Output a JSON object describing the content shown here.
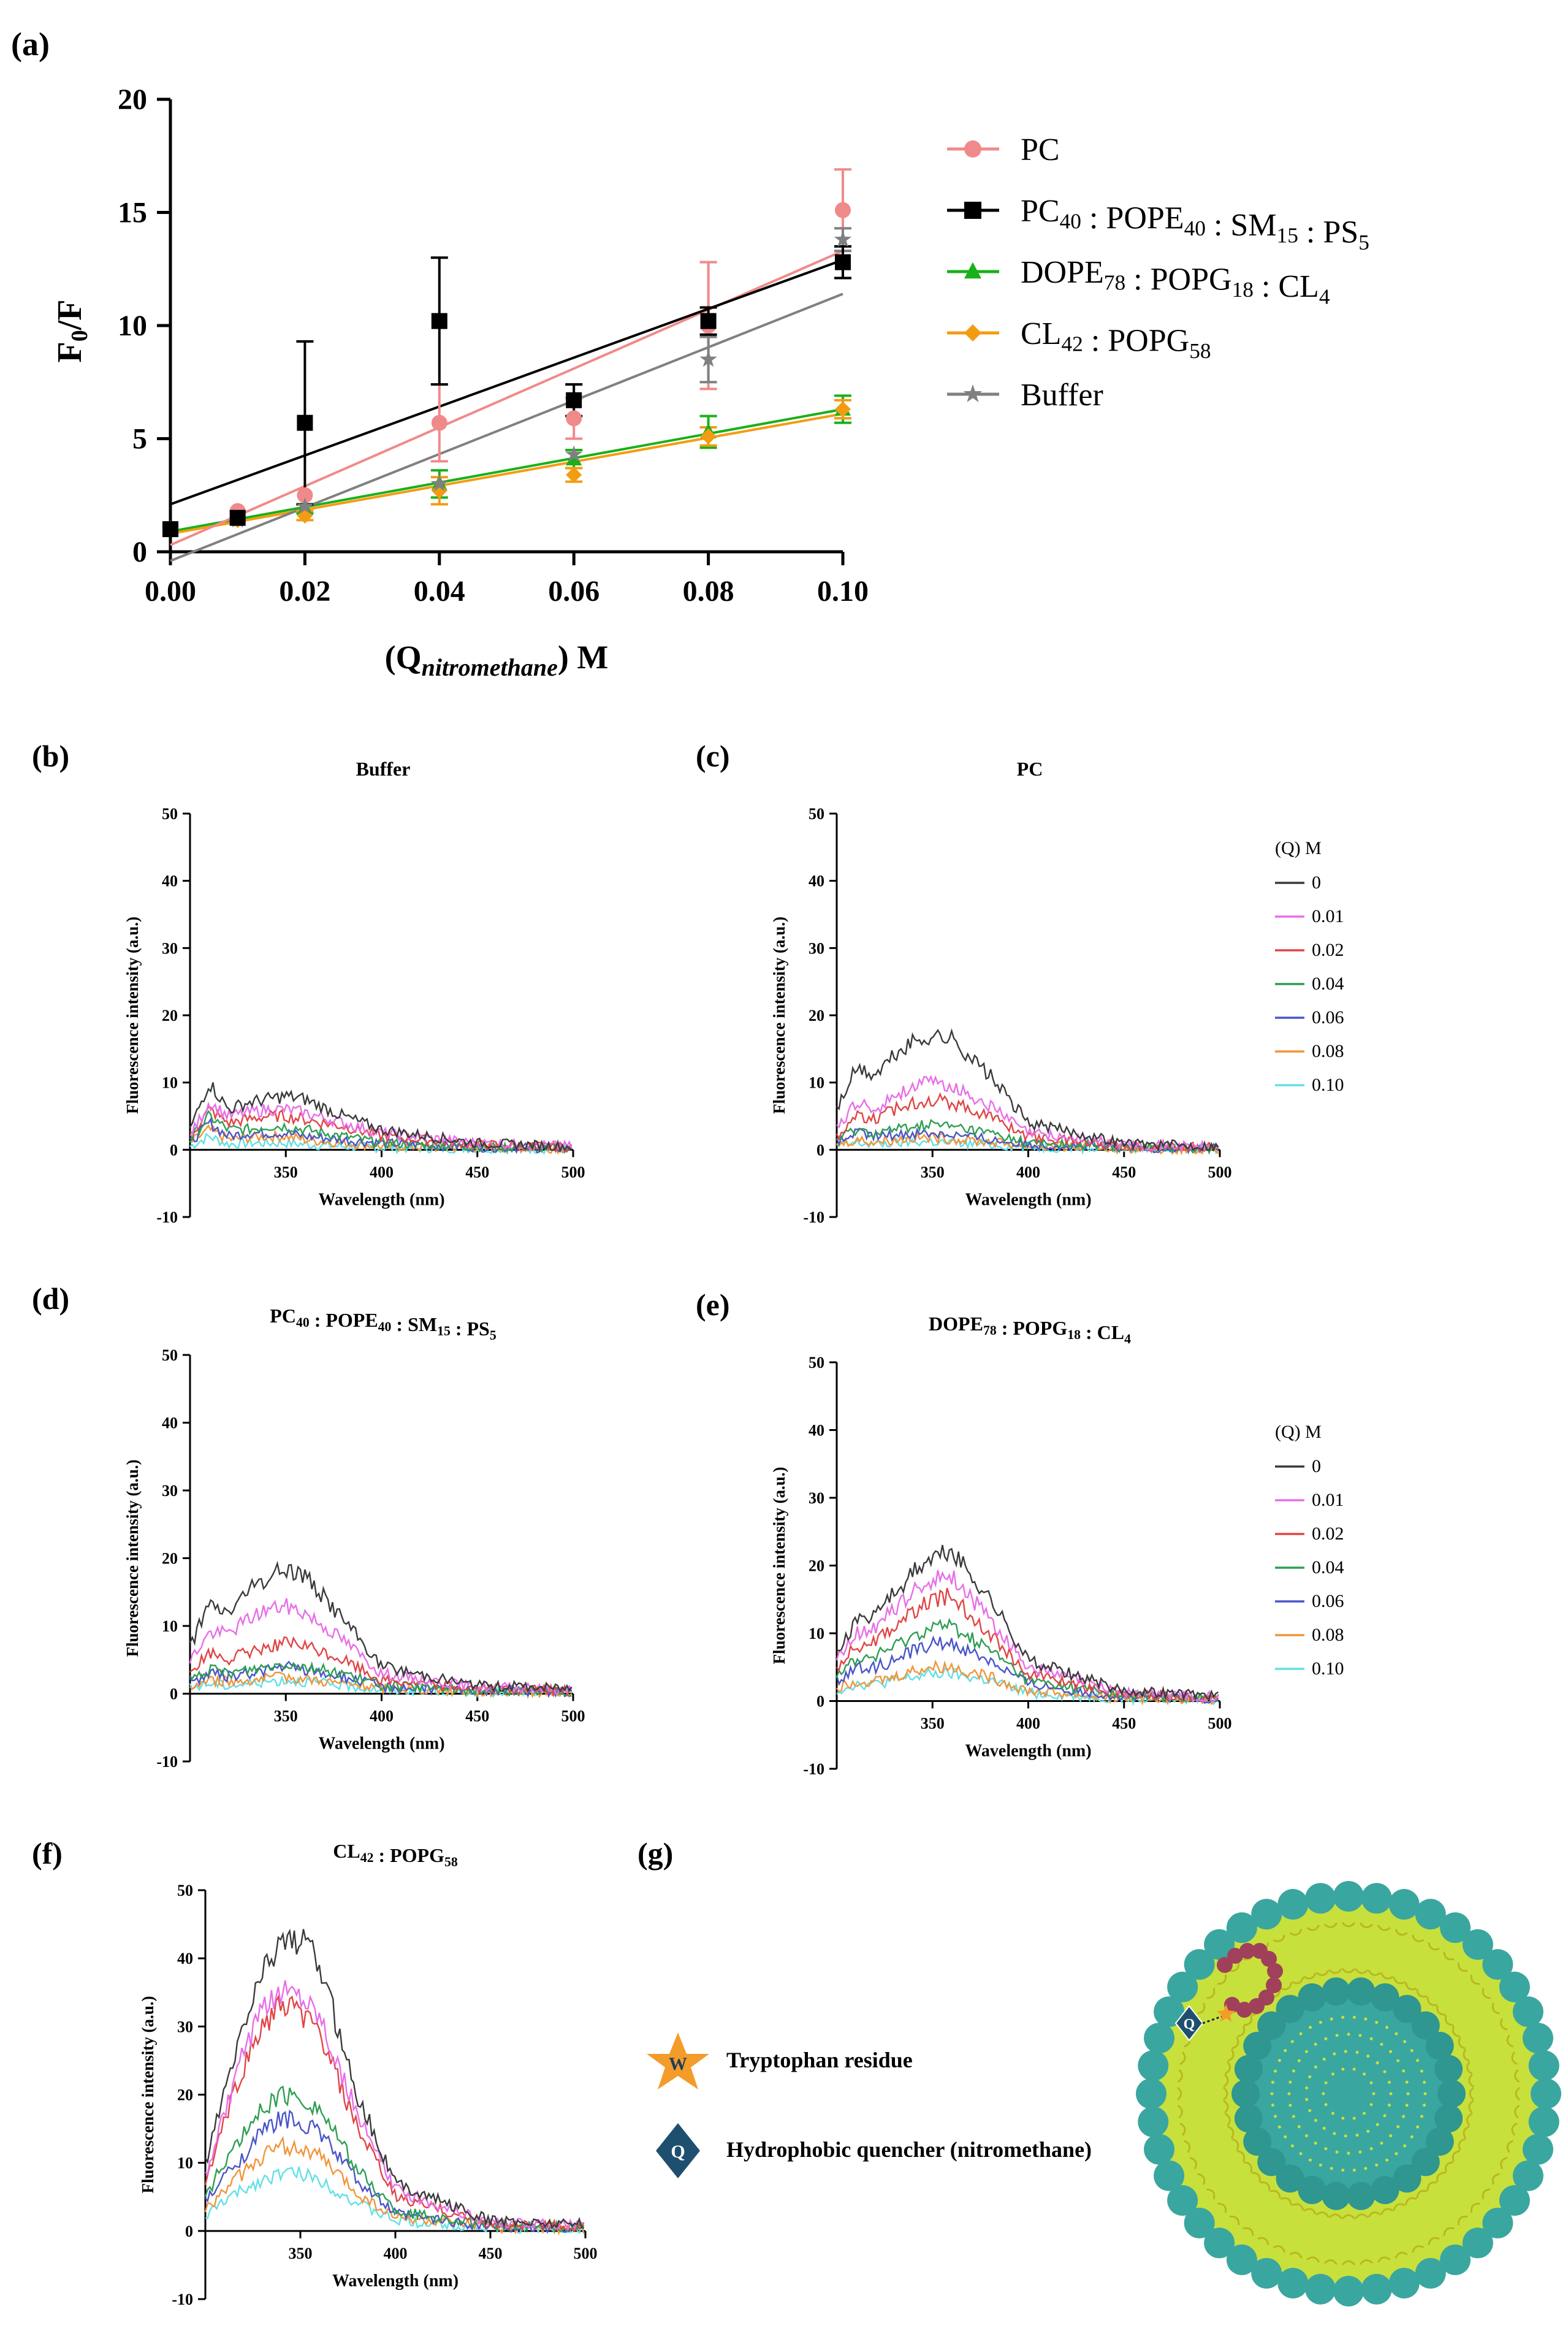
{
  "chart_data": [
    {
      "panel": "(a)",
      "type": "scatter",
      "title": "",
      "ylabel": "F0/F",
      "xlabel": "(Qnitromethane) M",
      "xlim": [
        0,
        0.1
      ],
      "ylim": [
        0,
        20
      ],
      "xticks": [
        "0.00",
        "0.02",
        "0.04",
        "0.06",
        "0.08",
        "0.10"
      ],
      "yticks": [
        "0",
        "5",
        "10",
        "15",
        "20"
      ],
      "legend_position": "right",
      "series": [
        {
          "name": "PC",
          "name_main": "PC",
          "name_parts": [],
          "color": "#f08a8a",
          "marker": "circle",
          "x": [
            0,
            0.01,
            0.02,
            0.04,
            0.06,
            0.08,
            0.1
          ],
          "y": [
            1.0,
            1.8,
            2.5,
            5.7,
            5.9,
            10.0,
            15.1
          ],
          "err": [
            0,
            0,
            0,
            1.7,
            0.9,
            2.8,
            1.8
          ],
          "fit": [
            0.3,
            13.3
          ]
        },
        {
          "name": "PC40 : POPE40 : SM15 : PS5",
          "name_main": "",
          "name_parts": [
            [
              "PC",
              "40"
            ],
            [
              " : POPE",
              "40"
            ],
            [
              " : SM",
              "15"
            ],
            [
              " : PS",
              "5"
            ]
          ],
          "color": "#000000",
          "marker": "square",
          "x": [
            0,
            0.01,
            0.02,
            0.04,
            0.06,
            0.08,
            0.1
          ],
          "y": [
            1.0,
            1.5,
            5.7,
            10.2,
            6.7,
            10.2,
            12.8
          ],
          "err": [
            0,
            0,
            3.6,
            2.8,
            0.7,
            0.6,
            0.7
          ],
          "fit": [
            2.1,
            12.9
          ]
        },
        {
          "name": "DOPE78 : POPG18 : CL4",
          "name_main": "",
          "name_parts": [
            [
              "DOPE",
              "78"
            ],
            [
              " : POPG",
              "18"
            ],
            [
              " : CL",
              "4"
            ]
          ],
          "color": "#1ab01a",
          "marker": "triangle",
          "x": [
            0,
            0.01,
            0.02,
            0.04,
            0.06,
            0.08,
            0.1
          ],
          "y": [
            1.0,
            1.5,
            1.9,
            3.0,
            4.1,
            5.3,
            6.3
          ],
          "err": [
            0,
            0,
            0.2,
            0.6,
            0.4,
            0.7,
            0.6
          ],
          "fit": [
            0.9,
            6.3
          ]
        },
        {
          "name": "CL42 : POPG58",
          "name_main": "",
          "name_parts": [
            [
              "CL",
              "42"
            ],
            [
              " : POPG",
              "58"
            ]
          ],
          "color": "#f39c12",
          "marker": "diamond",
          "x": [
            0,
            0.01,
            0.02,
            0.04,
            0.06,
            0.08,
            0.1
          ],
          "y": [
            1.0,
            1.4,
            1.6,
            2.7,
            3.4,
            5.1,
            6.3
          ],
          "err": [
            0,
            0,
            0.2,
            0.6,
            0.3,
            0.4,
            0.4
          ],
          "fit": [
            0.8,
            6.1
          ]
        },
        {
          "name": "Buffer",
          "name_main": "Buffer",
          "name_parts": [],
          "color": "#808080",
          "marker": "star",
          "x": [
            0,
            0.01,
            0.02,
            0.04,
            0.06,
            0.08,
            0.1
          ],
          "y": [
            1.0,
            1.4,
            2.0,
            3.0,
            4.3,
            8.5,
            13.8
          ],
          "err": [
            0,
            0,
            0,
            0,
            0,
            1.0,
            0.5
          ],
          "fit": [
            -0.4,
            11.4
          ]
        }
      ]
    },
    {
      "panel": "(b)",
      "type": "line",
      "title": "Buffer",
      "title_parts": [
        [
          "Buffer",
          ""
        ]
      ],
      "xlabel": "Wavelength (nm)",
      "ylabel": "Fluorescence intensity (a.u.)",
      "xlim": [
        300,
        500
      ],
      "ylim": [
        -10,
        50
      ],
      "xticks": [
        "350",
        "400",
        "450",
        "500"
      ],
      "yticks": [
        "50",
        "40",
        "30",
        "20",
        "10",
        "0",
        "-10"
      ],
      "x_wavelength": [
        300,
        310,
        320,
        330,
        340,
        350,
        360,
        380,
        400,
        450,
        500
      ],
      "series": [
        {
          "name": "0",
          "values": [
            3,
            10,
            6,
            7,
            7.5,
            8,
            7.5,
            5,
            3,
            1,
            0.5
          ]
        },
        {
          "name": "0.01",
          "values": [
            2,
            7,
            5,
            5.5,
            6,
            6,
            5.5,
            4,
            2.5,
            1,
            0.5
          ]
        },
        {
          "name": "0.02",
          "values": [
            2,
            6,
            4,
            4.5,
            5,
            5,
            4.5,
            3.5,
            2,
            0.8,
            0.4
          ]
        },
        {
          "name": "0.04",
          "values": [
            1.5,
            5,
            3,
            3,
            3.5,
            3.5,
            3,
            2,
            1,
            0.5,
            0.3
          ]
        },
        {
          "name": "0.06",
          "values": [
            1,
            4,
            2,
            2.5,
            2.5,
            2.5,
            2,
            1.5,
            1,
            0.4,
            0.2
          ]
        },
        {
          "name": "0.08",
          "values": [
            1,
            3,
            1.5,
            1.8,
            2,
            2,
            1.5,
            1,
            0.5,
            0.3,
            0.2
          ]
        },
        {
          "name": "0.10",
          "values": [
            0.5,
            2,
            0.8,
            1,
            1,
            1,
            0.8,
            0.5,
            0.3,
            0.2,
            0.1
          ]
        }
      ]
    },
    {
      "panel": "(c)",
      "type": "line",
      "title": "PC",
      "title_parts": [
        [
          "PC",
          ""
        ]
      ],
      "xlabel": "Wavelength (nm)",
      "ylabel": "Fluorescence intensity (a.u.)",
      "xlim": [
        300,
        500
      ],
      "ylim": [
        -10,
        50
      ],
      "xticks": [
        "350",
        "400",
        "450",
        "500"
      ],
      "yticks": [
        "50",
        "40",
        "30",
        "20",
        "10",
        "0",
        "-10"
      ],
      "x_wavelength": [
        300,
        310,
        320,
        330,
        340,
        350,
        360,
        380,
        400,
        450,
        500
      ],
      "series": [
        {
          "name": "0",
          "values": [
            6,
            12,
            11,
            14,
            16,
            17,
            16.5,
            11,
            4,
            1,
            0.5
          ]
        },
        {
          "name": "0.01",
          "values": [
            3,
            7,
            6,
            8,
            9.5,
            10,
            9.5,
            6.5,
            2.5,
            0.8,
            0.4
          ]
        },
        {
          "name": "0.02",
          "values": [
            2,
            5,
            4.5,
            6,
            7,
            7.5,
            7,
            5,
            2,
            0.6,
            0.3
          ]
        },
        {
          "name": "0.04",
          "values": [
            1.5,
            3,
            2.5,
            3,
            3.5,
            3.8,
            3.5,
            2.5,
            1,
            0.5,
            0.2
          ]
        },
        {
          "name": "0.06",
          "values": [
            1,
            2.5,
            2,
            2.2,
            2.5,
            2.5,
            2.3,
            1.5,
            0.8,
            0.3,
            0.2
          ]
        },
        {
          "name": "0.08",
          "values": [
            0.8,
            1.5,
            1.2,
            1.5,
            1.8,
            1.8,
            1.6,
            1.2,
            0.6,
            0.2,
            0.1
          ]
        },
        {
          "name": "0.10",
          "values": [
            0.5,
            1,
            0.8,
            1,
            1.2,
            1.2,
            1,
            0.8,
            0.4,
            0.2,
            0.1
          ]
        }
      ]
    },
    {
      "panel": "(d)",
      "type": "line",
      "title": "PC40 : POPE40 : SM15 : PS5",
      "title_parts": [
        [
          "PC",
          "40"
        ],
        [
          " : POPE",
          "40"
        ],
        [
          " : SM",
          "15"
        ],
        [
          " : PS",
          "5"
        ]
      ],
      "xlabel": "Wavelength (nm)",
      "ylabel": "Fluorescence intensity (a.u.)",
      "xlim": [
        300,
        500
      ],
      "ylim": [
        -10,
        50
      ],
      "xticks": [
        "350",
        "400",
        "450",
        "500"
      ],
      "yticks": [
        "50",
        "40",
        "30",
        "20",
        "10",
        "0",
        "-10"
      ],
      "x_wavelength": [
        300,
        310,
        320,
        330,
        340,
        350,
        360,
        380,
        400,
        450,
        500
      ],
      "series": [
        {
          "name": "0",
          "values": [
            7,
            13,
            12,
            15,
            17,
            18.5,
            17.5,
            11,
            4,
            1.2,
            0.8
          ]
        },
        {
          "name": "0.01",
          "values": [
            5,
            9,
            9,
            11,
            12.5,
            13,
            12,
            8,
            3,
            1,
            0.6
          ]
        },
        {
          "name": "0.02",
          "values": [
            3,
            6,
            5,
            6,
            7,
            7.5,
            7,
            5,
            2,
            0.8,
            0.4
          ]
        },
        {
          "name": "0.04",
          "values": [
            2,
            3.5,
            3,
            3.5,
            4,
            4.5,
            4,
            3,
            1.2,
            0.5,
            0.3
          ]
        },
        {
          "name": "0.06",
          "values": [
            1.5,
            3,
            2.5,
            3,
            3.5,
            4,
            3.5,
            2.5,
            1,
            0.5,
            0.3
          ]
        },
        {
          "name": "0.08",
          "values": [
            1,
            2,
            1.8,
            2,
            2.2,
            2.5,
            2.2,
            1.5,
            0.8,
            0.3,
            0.2
          ]
        },
        {
          "name": "0.10",
          "values": [
            0.8,
            1.5,
            1.2,
            1.5,
            1.8,
            2,
            1.8,
            1.2,
            0.6,
            0.3,
            0.2
          ]
        }
      ]
    },
    {
      "panel": "(e)",
      "type": "line",
      "title": "DOPE78 : POPG18 : CL4",
      "title_parts": [
        [
          "DOPE",
          "78"
        ],
        [
          " : POPG",
          "18"
        ],
        [
          " : CL",
          "4"
        ]
      ],
      "xlabel": "Wavelength (nm)",
      "ylabel": "Fluorescence intensity (a.u.)",
      "xlim": [
        300,
        500
      ],
      "ylim": [
        -10,
        50
      ],
      "xticks": [
        "350",
        "400",
        "450",
        "500"
      ],
      "yticks": [
        "50",
        "40",
        "30",
        "20",
        "10",
        "0",
        "-10"
      ],
      "x_wavelength": [
        300,
        310,
        320,
        330,
        340,
        350,
        360,
        380,
        400,
        450,
        500
      ],
      "series": [
        {
          "name": "0",
          "values": [
            7,
            12,
            13,
            16,
            19,
            21,
            22,
            15,
            6,
            1.5,
            0.8
          ]
        },
        {
          "name": "0.01",
          "values": [
            6,
            10,
            11,
            13.5,
            16,
            18,
            18.5,
            12,
            5,
            1.2,
            0.6
          ]
        },
        {
          "name": "0.02",
          "values": [
            5,
            8,
            9,
            11,
            13,
            15,
            15.5,
            10,
            4,
            1,
            0.5
          ]
        },
        {
          "name": "0.04",
          "values": [
            4,
            6,
            6.5,
            8,
            9.5,
            11,
            11,
            7.5,
            3,
            0.8,
            0.4
          ]
        },
        {
          "name": "0.06",
          "values": [
            3,
            5,
            5,
            6,
            7.5,
            8.5,
            8.5,
            6,
            2.5,
            0.6,
            0.3
          ]
        },
        {
          "name": "0.08",
          "values": [
            2,
            3,
            3,
            3.5,
            4.5,
            5,
            5,
            3.5,
            1.5,
            0.4,
            0.2
          ]
        },
        {
          "name": "0.10",
          "values": [
            1.5,
            2.5,
            2.5,
            3,
            3.5,
            4,
            4,
            3,
            1.2,
            0.3,
            0.2
          ]
        }
      ]
    },
    {
      "panel": "(f)",
      "type": "line",
      "title": "CL42 : POPG58",
      "title_parts": [
        [
          "CL",
          "42"
        ],
        [
          " : POPG",
          "58"
        ]
      ],
      "xlabel": "Wavelength (nm)",
      "ylabel": "Fluorescence intensity (a.u.)",
      "xlim": [
        300,
        500
      ],
      "ylim": [
        -10,
        50
      ],
      "xticks": [
        "350",
        "400",
        "450",
        "500"
      ],
      "yticks": [
        "50",
        "40",
        "30",
        "20",
        "10",
        "0",
        "-10"
      ],
      "x_wavelength": [
        300,
        310,
        320,
        330,
        340,
        350,
        360,
        380,
        400,
        450,
        500
      ],
      "series": [
        {
          "name": "0",
          "values": [
            10,
            20,
            30,
            38,
            43,
            43,
            39,
            20,
            7,
            1.5,
            1
          ]
        },
        {
          "name": "0.01",
          "values": [
            8,
            17,
            26,
            32,
            35.5,
            35,
            32,
            17,
            6,
            1.2,
            0.8
          ]
        },
        {
          "name": "0.02",
          "values": [
            7,
            16,
            24,
            30,
            33,
            32,
            29,
            15,
            5,
            1,
            0.7
          ]
        },
        {
          "name": "0.04",
          "values": [
            5,
            10,
            14,
            18,
            20,
            19.5,
            18,
            9,
            3,
            0.8,
            0.5
          ]
        },
        {
          "name": "0.06",
          "values": [
            4,
            8,
            11,
            14.5,
            16.5,
            16,
            14.5,
            7.5,
            2.5,
            0.6,
            0.4
          ]
        },
        {
          "name": "0.08",
          "values": [
            3,
            6,
            8.5,
            11,
            12.5,
            12,
            11,
            5.5,
            2,
            0.5,
            0.3
          ]
        },
        {
          "name": "0.10",
          "values": [
            2,
            4.5,
            6,
            7.5,
            8.5,
            8.5,
            7.5,
            4,
            1.5,
            0.4,
            0.2
          ]
        }
      ]
    }
  ],
  "figure": {
    "panel_a_label": "(a)",
    "panel_b_label": "(b)",
    "panel_c_label": "(c)",
    "panel_d_label": "(d)",
    "panel_e_label": "(e)",
    "panel_f_label": "(f)",
    "panel_g_label": "(g)",
    "qlegend_title": "(Q) M",
    "qlegend_items": [
      "0",
      "0.01",
      "0.02",
      "0.04",
      "0.06",
      "0.08",
      "0.10"
    ],
    "q_colors": [
      "#3a3a3a",
      "#e86ee8",
      "#e04545",
      "#2e9e52",
      "#4a55c8",
      "#f0953a",
      "#62e0e6"
    ],
    "ylabel_a_main": "F",
    "ylabel_a_sub": "0",
    "ylabel_a_rest": "/F",
    "xlabel_a_main": "(Q",
    "xlabel_a_italic": "nitromethane",
    "xlabel_a_rest": ") M",
    "scheme_tryptophan_symbol": "W",
    "scheme_tryptophan_label": "Tryptophan residue",
    "scheme_quencher_symbol": "Q",
    "scheme_quencher_label": "Hydrophobic quencher (nitromethane)",
    "scheme_colors": {
      "star": "#f39c2a",
      "diamond": "#1f4f6e",
      "headgroup": "#3aa6a0",
      "tail": "#c8e03c",
      "peptide": "#a0405a"
    }
  }
}
